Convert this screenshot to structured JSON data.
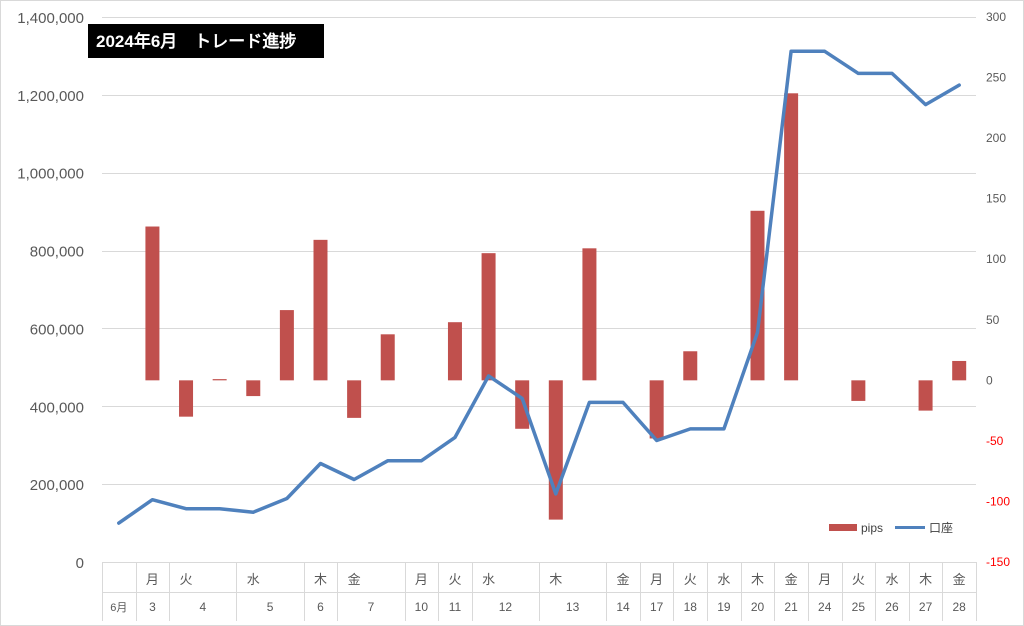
{
  "chart_data": {
    "type": "bar+line",
    "title": "2024年6月　トレード進捗",
    "colors": {
      "bars": "#c0504d",
      "line": "#4f81bd",
      "negative_right_axis": "#ff0000"
    },
    "left_axis": {
      "min": 0,
      "max": 1400000,
      "ticks": [
        "0",
        "200,000",
        "400,000",
        "600,000",
        "800,000",
        "1,000,000",
        "1,200,000",
        "1,400,000"
      ]
    },
    "right_axis": {
      "min": -150,
      "max": 300,
      "ticks": [
        "-150",
        "-100",
        "-50",
        "0",
        "50",
        "100",
        "150",
        "200",
        "250",
        "300"
      ]
    },
    "legend": {
      "position": "bottom-right",
      "bar_label": "pips",
      "line_label": "口座"
    },
    "month_label": "6月",
    "weekday_labels": [
      "",
      "月",
      "火",
      "",
      "水",
      "",
      "木",
      "金",
      "",
      "月",
      "火",
      "水",
      "",
      "木",
      "",
      "金",
      "月",
      "火",
      "水",
      "木",
      "金",
      "月",
      "火",
      "水",
      "木",
      "金"
    ],
    "date_labels": [
      "",
      "3",
      "4",
      "",
      "5",
      "",
      "6",
      "7",
      "",
      "10",
      "11",
      "12",
      "",
      "13",
      "",
      "14",
      "17",
      "18",
      "19",
      "20",
      "21",
      "24",
      "25",
      "26",
      "27",
      "28"
    ],
    "group_spans": [
      1,
      1,
      2,
      2,
      1,
      2,
      1,
      1,
      2,
      2,
      1,
      1,
      1,
      1,
      1,
      1,
      1,
      1,
      1,
      1,
      1
    ],
    "group_weekdays": [
      "",
      "月",
      "火",
      "水",
      "木",
      "金",
      "月",
      "火",
      "水",
      "木",
      "金",
      "月",
      "火",
      "水",
      "木",
      "金",
      "月",
      "火",
      "水",
      "木",
      "金"
    ],
    "group_dates": [
      "6月",
      "3",
      "4",
      "5",
      "6",
      "7",
      "10",
      "11",
      "12",
      "13",
      "14",
      "17",
      "18",
      "19",
      "20",
      "21",
      "24",
      "25",
      "26",
      "27",
      "28"
    ],
    "series": [
      {
        "name": "pips",
        "kind": "bar",
        "axis": "right",
        "values": [
          null,
          127,
          -30,
          1,
          -13,
          58,
          116,
          -31,
          38,
          null,
          48,
          105,
          -40,
          -115,
          109,
          null,
          -48,
          24,
          null,
          140,
          237,
          null,
          -17,
          null,
          -25,
          16
        ]
      },
      {
        "name": "口座",
        "kind": "line",
        "axis": "left",
        "values": [
          100000,
          160000,
          137000,
          137000,
          128000,
          163000,
          253000,
          212000,
          260000,
          260000,
          320000,
          478000,
          420000,
          175000,
          410000,
          410000,
          312000,
          342000,
          342000,
          590000,
          1312000,
          1312000,
          1255000,
          1255000,
          1175000,
          1225000
        ]
      }
    ]
  }
}
